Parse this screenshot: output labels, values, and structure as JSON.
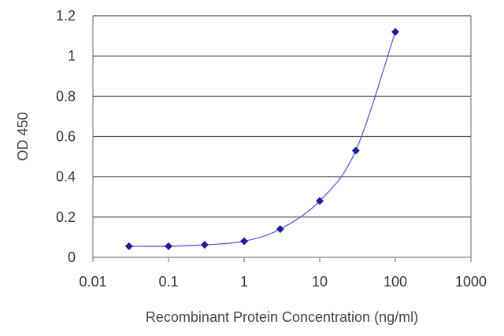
{
  "chart_data": {
    "type": "scatter",
    "title": "",
    "xlabel": "Recombinant Protein Concentration (ng/ml)",
    "ylabel": "OD 450",
    "x_scale": "log",
    "xlim": [
      0.01,
      1000
    ],
    "ylim": [
      0,
      1.2
    ],
    "x_ticks": [
      0.01,
      0.1,
      1,
      10,
      100,
      1000
    ],
    "x_tick_labels": [
      "0.01",
      "0.1",
      "1",
      "10",
      "100",
      "1000"
    ],
    "y_ticks": [
      0,
      0.2,
      0.4,
      0.6,
      0.8,
      1,
      1.2
    ],
    "y_tick_labels": [
      "0",
      "0.2",
      "0.4",
      "0.6",
      "0.8",
      "1",
      "1.2"
    ],
    "grid": "horizontal",
    "legend": "none",
    "series": [
      {
        "x": [
          0.03,
          0.1,
          0.3,
          1,
          3,
          10,
          30,
          100
        ],
        "y": [
          0.055,
          0.055,
          0.062,
          0.08,
          0.14,
          0.28,
          0.53,
          1.12
        ],
        "fit_curve": true
      }
    ],
    "colors": {
      "marker": "#1c1c9c",
      "line": "#5a5ad6",
      "grid": "#555555",
      "axis": "#666666"
    }
  }
}
